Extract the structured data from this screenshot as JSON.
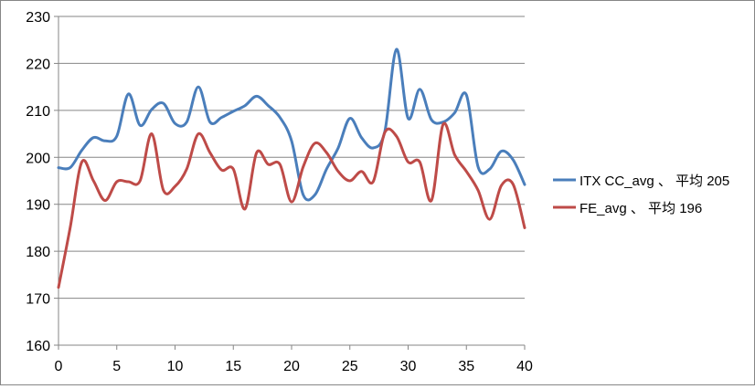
{
  "chart_data": {
    "type": "line",
    "x": [
      0,
      1,
      2,
      3,
      4,
      5,
      6,
      7,
      8,
      9,
      10,
      11,
      12,
      13,
      14,
      15,
      16,
      17,
      18,
      19,
      20,
      21,
      22,
      23,
      24,
      25,
      26,
      27,
      28,
      29,
      30,
      31,
      32,
      33,
      34,
      35,
      36,
      37,
      38,
      39,
      40
    ],
    "xlim": [
      0,
      40
    ],
    "ylim": [
      160,
      230
    ],
    "x_ticks": [
      "0",
      "5",
      "10",
      "15",
      "20",
      "25",
      "30",
      "35",
      "40"
    ],
    "y_ticks": [
      "160",
      "170",
      "180",
      "190",
      "200",
      "210",
      "220",
      "230"
    ],
    "grid": "horizontal",
    "legend_position": "right",
    "colors": {
      "series_1": "#4a7ebb",
      "series_2": "#be4b48",
      "grid": "#868686",
      "axis": "#868686"
    },
    "series": [
      {
        "name": "ITX CC_avg 、 平均 205",
        "values": [
          197.8,
          197.8,
          201.5,
          204.2,
          203.5,
          204.5,
          213.5,
          206.8,
          210.2,
          211.5,
          207.2,
          207.5,
          215,
          207.5,
          208.5,
          209.8,
          211,
          213,
          211,
          208.5,
          203.5,
          192,
          192,
          197.5,
          202,
          208.3,
          204.2,
          202,
          205.5,
          223,
          208.3,
          214.5,
          208,
          207.5,
          209.5,
          213.3,
          198,
          197.5,
          201.3,
          199.5,
          194.2
        ]
      },
      {
        "name": "FE_avg 、 平均 196",
        "values": [
          172.3,
          185,
          199,
          195,
          190.8,
          194.8,
          194.8,
          195,
          205,
          193,
          193.8,
          197.5,
          205,
          201,
          197.3,
          197.5,
          189,
          201,
          198.5,
          198.5,
          190.5,
          198,
          203,
          201,
          197,
          195,
          197,
          194.8,
          205.3,
          204.5,
          199,
          199,
          190.8,
          207,
          200.5,
          197,
          193,
          186.8,
          194,
          194.3,
          185
        ]
      }
    ]
  }
}
